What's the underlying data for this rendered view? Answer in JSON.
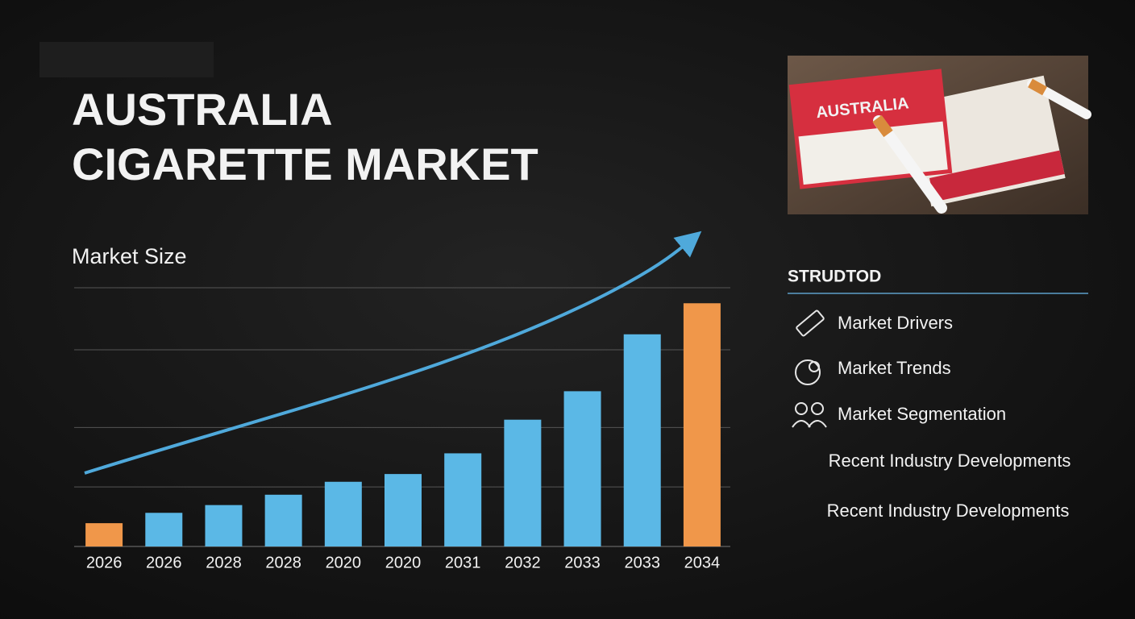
{
  "header": {
    "title_lines": [
      "AUSTRALIA",
      "CIGARETTE MARKET"
    ]
  },
  "photo": {
    "pack_label": "AUSTRALIA"
  },
  "sidebar": {
    "heading": "STRUDTOD",
    "items": [
      "Market Drivers",
      "Market Trends",
      "Market Segmentation",
      "Recent Industry Developments",
      "Recent Industry Developments"
    ]
  },
  "chart_data": {
    "type": "bar",
    "title": "Market Size",
    "categories": [
      "2026",
      "2026",
      "2028",
      "2028",
      "2020",
      "2020",
      "2031",
      "2032",
      "2033",
      "2033",
      "2034"
    ],
    "values": [
      9,
      13,
      16,
      20,
      25,
      28,
      36,
      49,
      60,
      82,
      94
    ],
    "colors": [
      "#f0974a",
      "#5bb8e6",
      "#5bb8e6",
      "#5bb8e6",
      "#5bb8e6",
      "#5bb8e6",
      "#5bb8e6",
      "#5bb8e6",
      "#5bb8e6",
      "#5bb8e6",
      "#f0974a"
    ],
    "ylim": [
      0,
      100
    ],
    "gridlines": [
      23,
      46,
      76,
      100
    ],
    "grid": true,
    "trend_color": "#4fa9db"
  }
}
